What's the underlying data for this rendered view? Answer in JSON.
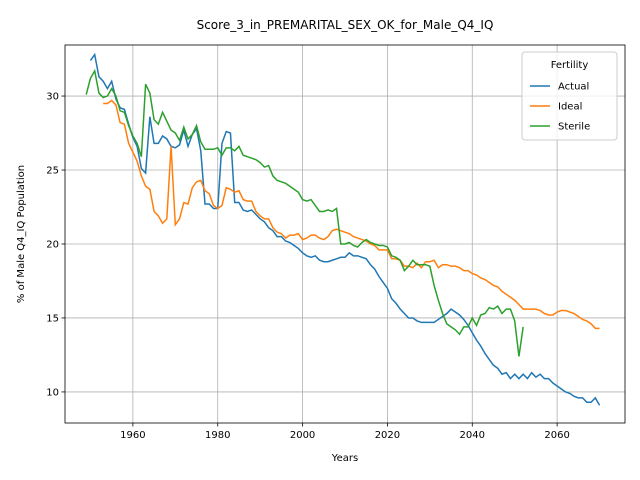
{
  "chart_data": {
    "type": "line",
    "title": "Score_3_in_PREMARITAL_SEX_OK_for_Male_Q4_IQ",
    "xlabel": "Years",
    "ylabel": "% of Male Q4_IQ Population",
    "legend_title": "Fertility",
    "legend": "upper right",
    "grid": true,
    "xlim": [
      1944,
      2076
    ],
    "ylim": [
      7.9,
      33.45
    ],
    "xticks": [
      1960,
      1980,
      2000,
      2020,
      2040,
      2060
    ],
    "yticks": [
      10,
      15,
      20,
      25,
      30
    ],
    "x": [
      1949,
      1950,
      1951,
      1952,
      1953,
      1954,
      1955,
      1956,
      1957,
      1958,
      1959,
      1960,
      1961,
      1962,
      1963,
      1964,
      1965,
      1966,
      1967,
      1968,
      1969,
      1970,
      1971,
      1972,
      1973,
      1974,
      1975,
      1976,
      1977,
      1978,
      1979,
      1980,
      1981,
      1982,
      1983,
      1984,
      1985,
      1986,
      1987,
      1988,
      1989,
      1990,
      1991,
      1992,
      1993,
      1994,
      1995,
      1996,
      1997,
      1998,
      1999,
      2000,
      2001,
      2002,
      2003,
      2004,
      2005,
      2006,
      2007,
      2008,
      2009,
      2010,
      2011,
      2012,
      2013,
      2014,
      2015,
      2016,
      2017,
      2018,
      2019,
      2020,
      2021,
      2022,
      2023,
      2024,
      2025,
      2026,
      2027,
      2028,
      2029,
      2030,
      2031,
      2032,
      2033,
      2034,
      2035,
      2036,
      2037,
      2038,
      2039,
      2040,
      2041,
      2042,
      2043,
      2044,
      2045,
      2046,
      2047,
      2048,
      2049,
      2050,
      2051,
      2052,
      2053,
      2054,
      2055,
      2056,
      2057,
      2058,
      2059,
      2060,
      2061,
      2062,
      2063,
      2064,
      2065,
      2066,
      2067,
      2068,
      2069,
      2070
    ],
    "series": [
      {
        "name": "Actual",
        "color": "#1f77b4",
        "values": [
          null,
          32.4,
          32.8,
          31.3,
          31.0,
          30.5,
          31.0,
          29.8,
          29.2,
          29.1,
          28.1,
          27.2,
          26.6,
          25.1,
          24.8,
          28.6,
          26.8,
          26.8,
          27.3,
          27.1,
          26.6,
          26.5,
          26.7,
          27.7,
          26.6,
          27.4,
          27.8,
          26.3,
          22.7,
          22.7,
          22.4,
          22.4,
          26.8,
          27.6,
          27.5,
          22.8,
          22.8,
          22.3,
          22.2,
          22.3,
          22.0,
          21.7,
          21.5,
          21.1,
          20.9,
          20.5,
          20.5,
          20.2,
          20.1,
          19.9,
          19.7,
          19.4,
          19.2,
          19.1,
          19.2,
          18.9,
          18.8,
          18.8,
          18.9,
          19.0,
          19.1,
          19.1,
          19.4,
          19.2,
          19.2,
          19.1,
          19.0,
          18.6,
          18.3,
          17.8,
          17.4,
          17.0,
          16.3,
          16.0,
          15.6,
          15.3,
          15.0,
          15.0,
          14.8,
          14.7,
          14.7,
          14.7,
          14.7,
          14.9,
          15.1,
          15.3,
          15.6,
          15.4,
          15.2,
          14.9,
          14.5,
          14.0,
          13.5,
          13.1,
          12.6,
          12.2,
          11.8,
          11.6,
          11.2,
          11.3,
          10.9,
          11.2,
          10.9,
          11.2,
          10.9,
          11.3,
          11.0,
          11.2,
          10.9,
          10.9,
          10.6,
          10.4,
          10.2,
          10.0,
          9.9,
          9.7,
          9.6,
          9.6,
          9.3,
          9.3,
          9.6,
          9.1
        ]
      },
      {
        "name": "Ideal",
        "color": "#ff7f0e",
        "values": [
          null,
          null,
          null,
          null,
          29.5,
          29.5,
          29.7,
          29.4,
          28.2,
          28.1,
          26.8,
          26.2,
          25.6,
          24.6,
          23.9,
          23.7,
          22.2,
          21.9,
          21.4,
          21.7,
          26.6,
          21.3,
          21.7,
          22.8,
          22.7,
          23.8,
          24.2,
          24.3,
          23.6,
          23.4,
          22.6,
          22.4,
          22.6,
          23.8,
          23.7,
          23.5,
          23.6,
          23.0,
          22.9,
          22.9,
          22.2,
          21.9,
          21.7,
          21.7,
          21.1,
          20.8,
          20.7,
          20.4,
          20.6,
          20.6,
          20.7,
          20.3,
          20.4,
          20.6,
          20.6,
          20.4,
          20.3,
          20.5,
          20.9,
          21.0,
          20.9,
          20.8,
          20.7,
          20.5,
          20.4,
          20.3,
          20.2,
          20.0,
          19.9,
          19.6,
          19.6,
          19.6,
          19.0,
          19.0,
          18.9,
          18.5,
          18.5,
          18.4,
          18.7,
          18.4,
          18.8,
          18.8,
          18.9,
          18.4,
          18.6,
          18.6,
          18.5,
          18.5,
          18.4,
          18.2,
          18.2,
          18.0,
          17.9,
          17.7,
          17.6,
          17.4,
          17.2,
          17.1,
          16.8,
          16.6,
          16.4,
          16.2,
          15.9,
          15.6,
          15.6,
          15.6,
          15.6,
          15.5,
          15.3,
          15.2,
          15.2,
          15.4,
          15.5,
          15.5,
          15.4,
          15.3,
          15.1,
          14.9,
          14.8,
          14.6,
          14.3,
          14.3
        ]
      },
      {
        "name": "Sterile",
        "color": "#2ca02c",
        "values": [
          30.1,
          31.2,
          31.7,
          30.2,
          29.9,
          30.0,
          30.5,
          30.0,
          29.0,
          28.9,
          28.0,
          27.3,
          26.8,
          25.9,
          30.8,
          30.2,
          28.4,
          28.1,
          28.9,
          28.3,
          27.7,
          27.5,
          27.0,
          27.9,
          27.1,
          27.4,
          28.0,
          26.9,
          26.4,
          26.4,
          26.4,
          26.5,
          26.0,
          26.5,
          26.5,
          26.3,
          26.6,
          26.0,
          25.9,
          25.8,
          25.7,
          25.5,
          25.2,
          25.3,
          24.6,
          24.3,
          24.2,
          24.1,
          23.9,
          23.7,
          23.5,
          23.0,
          22.9,
          23.0,
          22.6,
          22.2,
          22.2,
          22.3,
          22.2,
          22.4,
          20.0,
          20.0,
          20.1,
          19.9,
          19.8,
          20.1,
          20.3,
          20.1,
          20.0,
          19.9,
          19.9,
          19.8,
          19.2,
          19.1,
          18.9,
          18.2,
          18.5,
          18.9,
          18.6,
          18.6,
          18.6,
          18.5,
          17.2,
          16.2,
          15.3,
          14.6,
          14.4,
          14.2,
          13.9,
          14.4,
          14.4,
          15.0,
          14.5,
          15.2,
          15.3,
          15.7,
          15.6,
          15.8,
          15.3,
          15.6,
          15.6,
          14.8,
          12.4,
          14.4,
          null,
          null,
          null,
          null,
          null,
          null,
          null,
          null,
          null,
          null,
          null,
          null,
          null,
          null,
          null,
          null,
          null,
          null
        ]
      }
    ]
  }
}
